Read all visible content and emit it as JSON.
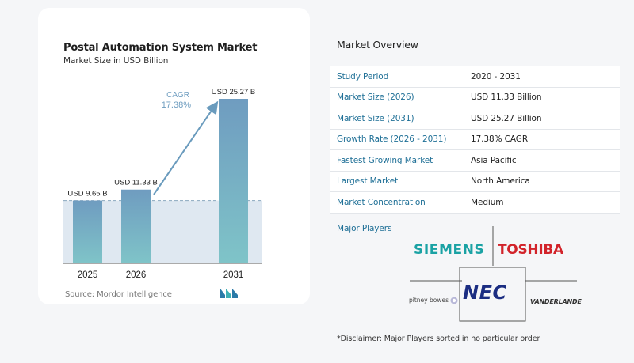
{
  "chart_data": {
    "type": "bar",
    "title": "Postal Automation System Market",
    "subtitle": "Market Size in USD Billion",
    "categories": [
      "2025",
      "2026",
      "2031"
    ],
    "values": [
      9.65,
      11.33,
      25.27
    ],
    "data_labels": [
      "USD 9.65 B",
      "USD 11.33 B",
      "USD 25.27 B"
    ],
    "cagr_label": "CAGR",
    "cagr_value": "17.38%",
    "ylim": [
      0,
      25.27
    ],
    "colors": {
      "bar_top": "#6f9cc0",
      "bar_bottom": "#7fc4c8",
      "band": "#dfe8f1",
      "arrow": "#6a9bbd",
      "cagr_text": "#6d9cbf"
    }
  },
  "source": "Source:  Mordor Intelligence",
  "overview": {
    "title": "Market Overview",
    "rows": [
      {
        "key": "Study Period",
        "value": "2020 - 2031"
      },
      {
        "key": "Market Size (2026)",
        "value": "USD 11.33 Billion"
      },
      {
        "key": "Market Size (2031)",
        "value": "USD 25.27 Billion"
      },
      {
        "key": "Growth Rate (2026 - 2031)",
        "value": "17.38% CAGR"
      },
      {
        "key": "Fastest Growing Market",
        "value": "Asia Pacific"
      },
      {
        "key": "Largest Market",
        "value": "North America"
      },
      {
        "key": "Market Concentration",
        "value": "Medium"
      }
    ]
  },
  "players": {
    "title": "Major Players",
    "logos": {
      "siemens": "SIEMENS",
      "toshiba": "TOSHIBA",
      "nec": "NEC",
      "pitney": "pitney bowes",
      "vanderlande": "VANDERLANDE"
    }
  },
  "disclaimer": "*Disclaimer: Major Players sorted in no particular order"
}
